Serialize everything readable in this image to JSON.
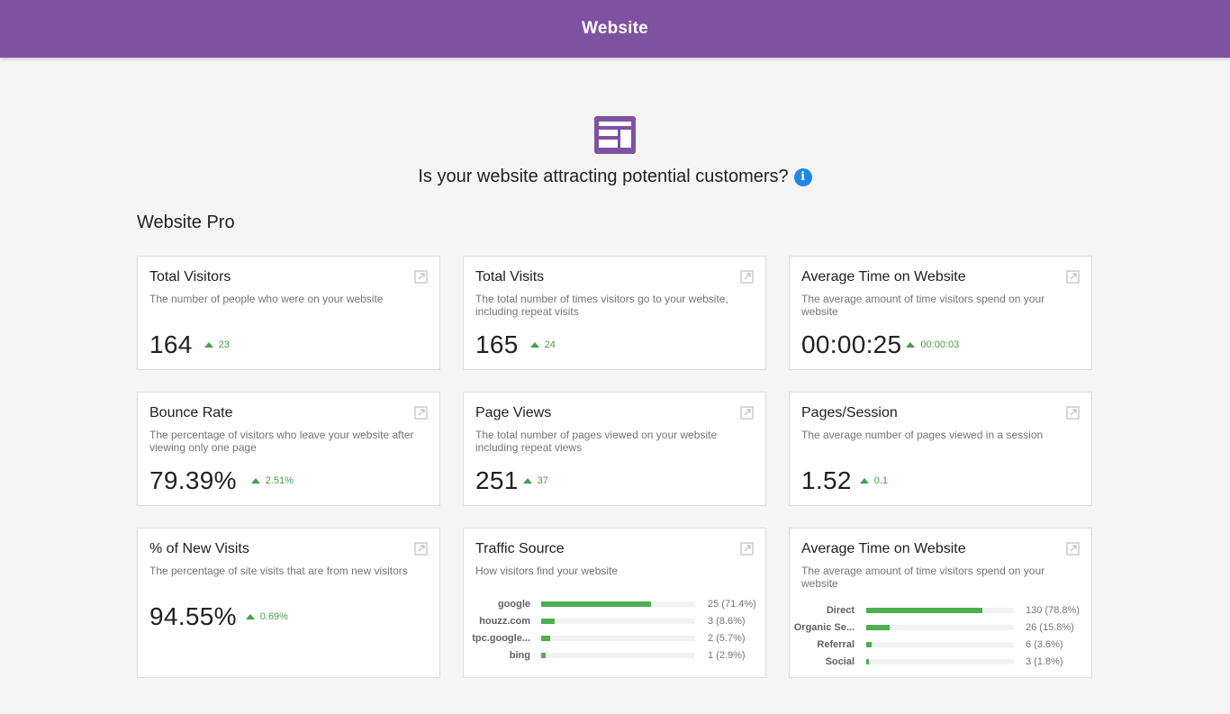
{
  "header": {
    "title": "Website"
  },
  "hero": {
    "question": "Is your website attracting potential customers?",
    "info_icon": "info-icon"
  },
  "section": {
    "title": "Website Pro"
  },
  "colors": {
    "brand": "#7e51a1",
    "positive": "#43a047",
    "bar": "#4caf50",
    "info": "#1e88e5"
  },
  "cards": [
    {
      "title": "Total Visitors",
      "desc": "The number of people who were on your website",
      "value": "164",
      "delta": "23"
    },
    {
      "title": "Total Visits",
      "desc": "The total number of times visitors go to your website, including repeat visits",
      "value": "165",
      "delta": "24"
    },
    {
      "title": "Average Time on Website",
      "desc": "The average amount of time visitors spend on your website",
      "value": "00:00:25",
      "delta": "00:00:03"
    },
    {
      "title": "Bounce Rate",
      "desc": "The percentage of visitors who leave your website after viewing only one page",
      "value": "79.39%",
      "delta": "2.51%"
    },
    {
      "title": "Page Views",
      "desc": "The total number of pages viewed on your website including repeat views",
      "value": "251",
      "delta": "37"
    },
    {
      "title": "Pages/Session",
      "desc": "The average number of pages viewed in a session",
      "value": "1.52",
      "delta": "0.1"
    },
    {
      "title": "% of New Visits",
      "desc": "The percentage of site visits that are from new visitors",
      "value": "94.55%",
      "delta": "0.69%"
    }
  ],
  "traffic_source": {
    "title": "Traffic Source",
    "desc": "How visitors find your website",
    "rows": [
      {
        "label": "google",
        "value": "25 (71.4%)",
        "pct": 71.4
      },
      {
        "label": "houzz.com",
        "value": "3 (8.6%)",
        "pct": 8.6
      },
      {
        "label": "tpc.google...",
        "value": "2 (5.7%)",
        "pct": 5.7
      },
      {
        "label": "bing",
        "value": "1 (2.9%)",
        "pct": 2.9
      }
    ]
  },
  "channels": {
    "title": "Average Time on Website",
    "desc": "The average amount of time visitors spend on your website",
    "rows": [
      {
        "label": "Direct",
        "value": "130 (78.8%)",
        "pct": 78.8
      },
      {
        "label": "Organic Se...",
        "value": "26 (15.8%)",
        "pct": 15.8
      },
      {
        "label": "Referral",
        "value": "6 (3.6%)",
        "pct": 3.6
      },
      {
        "label": "Social",
        "value": "3 (1.8%)",
        "pct": 1.8
      }
    ]
  }
}
